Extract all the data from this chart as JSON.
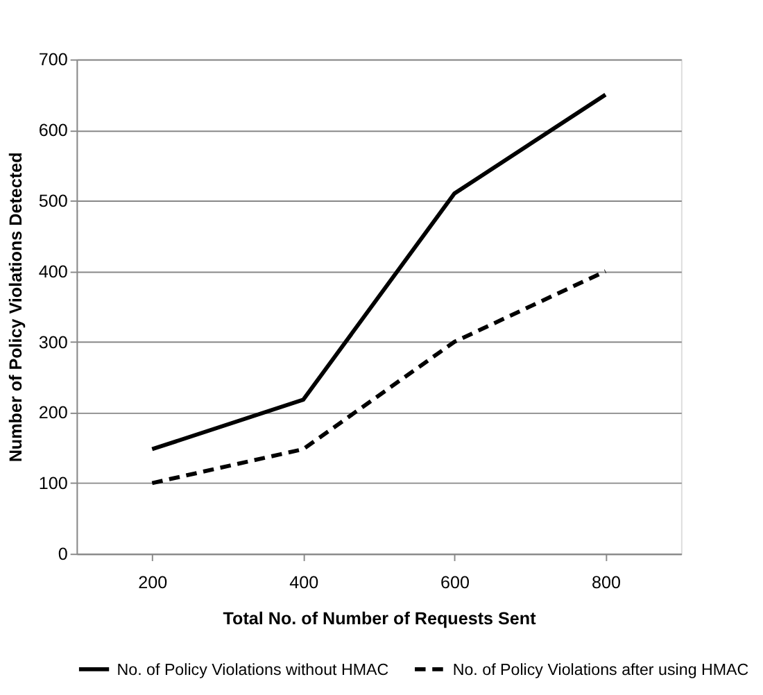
{
  "chart_data": {
    "type": "line",
    "xlabel": "Total No. of Number of Requests Sent",
    "ylabel": "Number of Policy Violations Detected",
    "categories": [
      "200",
      "400",
      "600",
      "800"
    ],
    "series": [
      {
        "name": "No. of Policy Violations without HMAC",
        "color": "#000000",
        "line_style": "solid",
        "values": [
          148,
          218,
          510,
          650
        ]
      },
      {
        "name": "No. of Policy Violations after using HMAC",
        "color": "#000000",
        "line_style": "dashed",
        "values": [
          100,
          148,
          300,
          400
        ]
      }
    ],
    "ylim": [
      0,
      700
    ],
    "yticks": [
      0,
      100,
      200,
      300,
      400,
      500,
      600,
      700
    ],
    "grid": "y",
    "legend": "bottom",
    "marker": "none"
  }
}
